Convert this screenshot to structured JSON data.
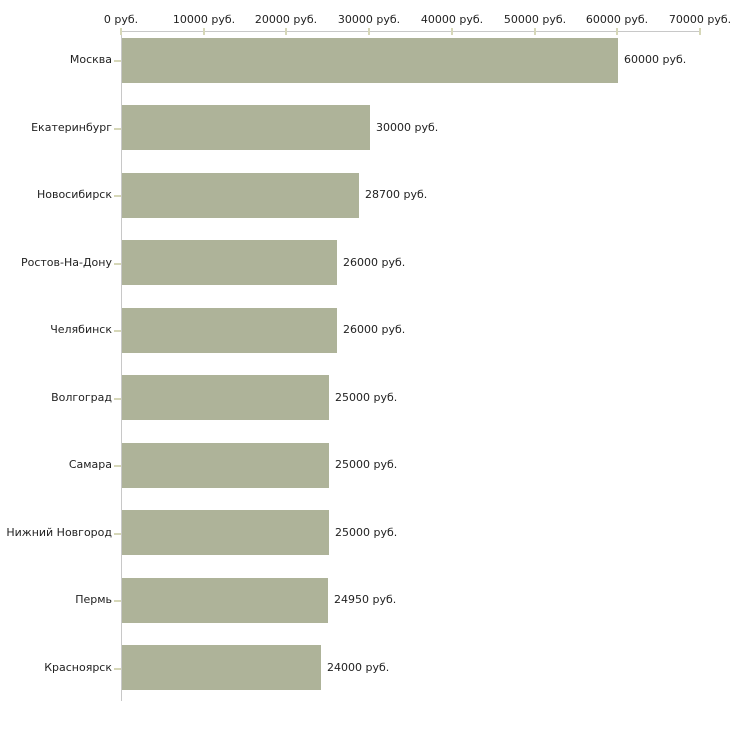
{
  "chart_data": {
    "type": "bar",
    "orientation": "horizontal",
    "title": "",
    "xlabel": "",
    "ylabel": "",
    "unit_suffix": " руб.",
    "categories": [
      "Москва",
      "Екатеринбург",
      "Новосибирск",
      "Ростов-На-Дону",
      "Челябинск",
      "Волгоград",
      "Самара",
      "Нижний Новгород",
      "Пермь",
      "Красноярск"
    ],
    "values": [
      60000,
      30000,
      28700,
      26000,
      26000,
      25000,
      25000,
      25000,
      24950,
      24000
    ],
    "value_labels": [
      "60000 руб.",
      "30000 руб.",
      "28700 руб.",
      "26000 руб.",
      "26000 руб.",
      "25000 руб.",
      "25000 руб.",
      "25000 руб.",
      "24950 руб.",
      "24000 руб."
    ],
    "x_axis": {
      "position": "top",
      "min": 0,
      "max": 70000,
      "tick_step": 10000,
      "ticks": [
        0,
        10000,
        20000,
        30000,
        40000,
        50000,
        60000,
        70000
      ],
      "tick_labels": [
        "0 руб.",
        "10000 руб.",
        "20000 руб.",
        "30000 руб.",
        "40000 руб.",
        "50000 руб.",
        "60000 руб.",
        "70000 руб."
      ]
    },
    "legend": "none",
    "grid": false,
    "colors": {
      "bar": "#aeb399",
      "axis_line": "#c8c8c8",
      "tick_mark": "#d6d7b8",
      "text": "#222222",
      "background": "#ffffff"
    }
  }
}
